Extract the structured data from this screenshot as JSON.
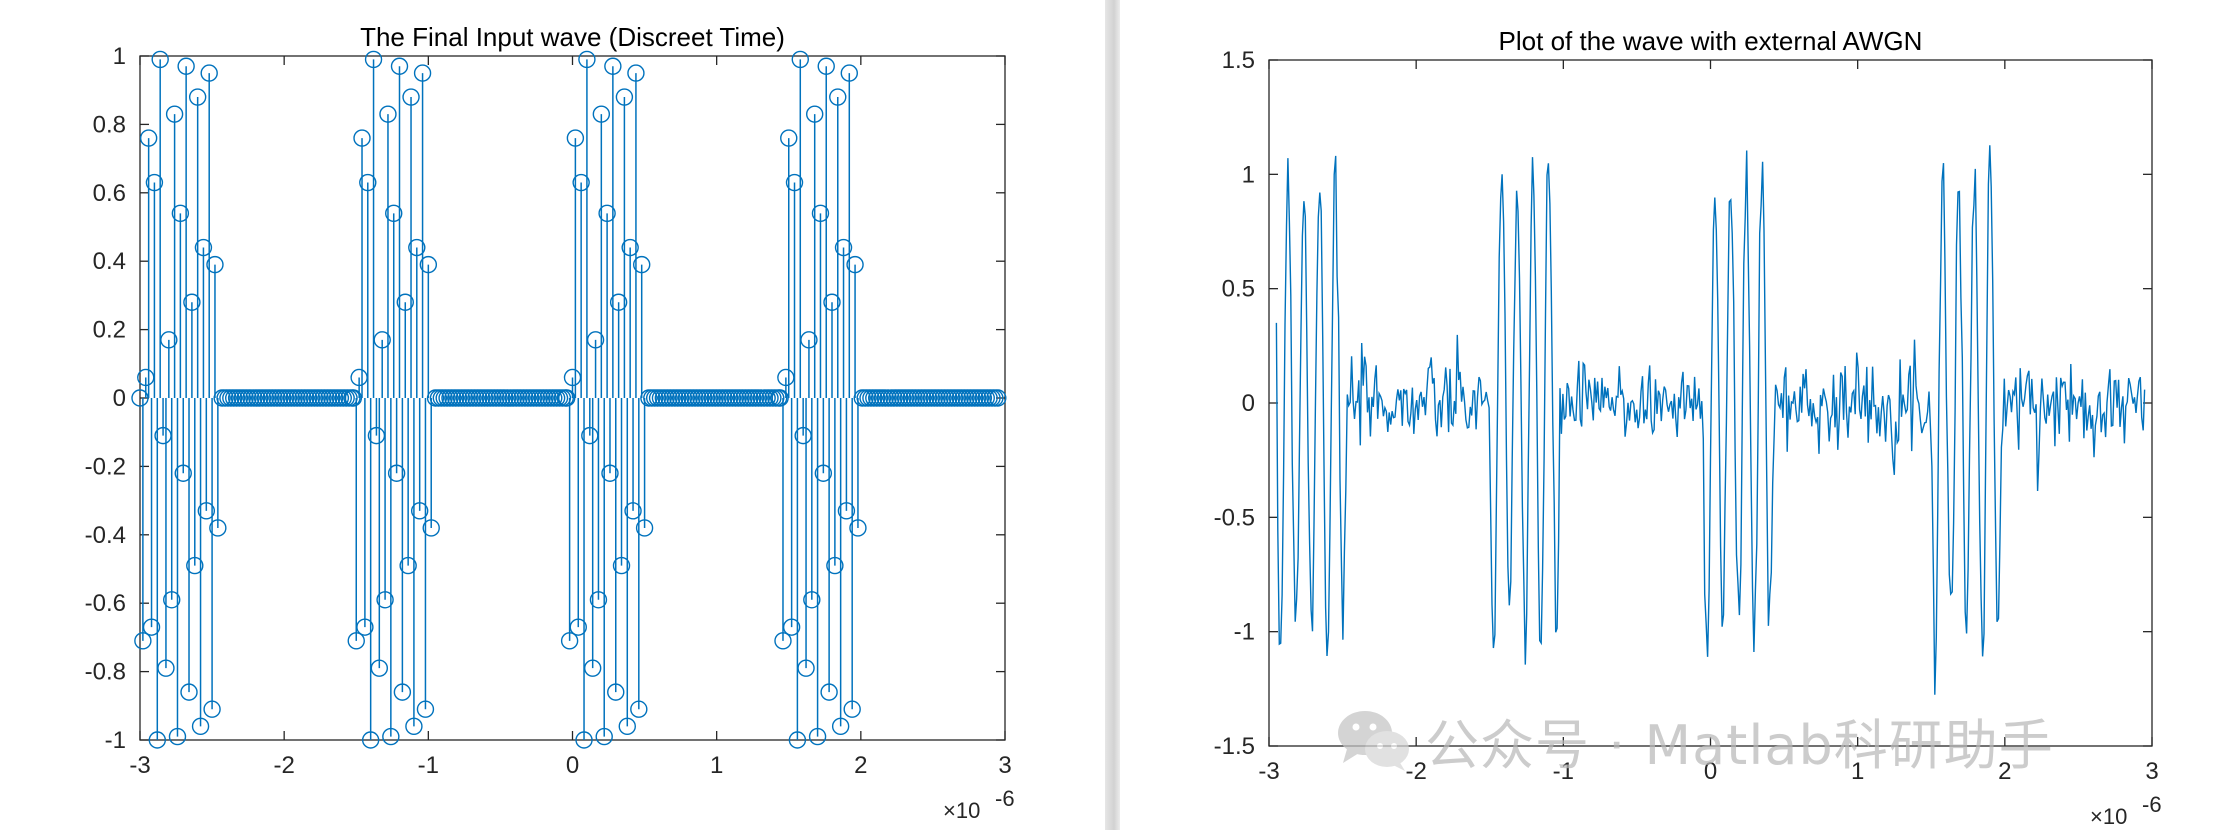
{
  "chart_data": [
    {
      "type": "stem",
      "title": "The Final Input wave (Discreet Time)",
      "xlabel": "",
      "ylabel": "",
      "xlim": [
        -3e-06,
        3e-06
      ],
      "ylim": [
        -1,
        1
      ],
      "xticks": [
        "-3",
        "-2",
        "-1",
        "0",
        "1",
        "2",
        "3"
      ],
      "yticks": [
        "1",
        "0.8",
        "0.6",
        "0.4",
        "0.2",
        "0",
        "-0.2",
        "-0.4",
        "-0.6",
        "-0.8",
        "-1"
      ],
      "x_exponent_label": "×10",
      "x_exponent_power": "-6",
      "grid": false,
      "color": "#0072BD",
      "marker": "circle",
      "sample_period": 2e-08,
      "burst_starts": [
        -3e-06,
        -1.52e-06,
        -4e-08,
        1.44e-06
      ],
      "burst_length_samples": 28,
      "values_per_burst": [
        0,
        -0.71,
        0.06,
        0.76,
        -0.67,
        0.63,
        -1.0,
        0.99,
        -0.11,
        -0.79,
        0.17,
        -0.59,
        0.83,
        -0.99,
        0.54,
        -0.22,
        0.97,
        -0.86,
        0.28,
        -0.49,
        0.88,
        -0.96,
        0.44,
        -0.33,
        0.95,
        -0.91,
        0.39,
        -0.38
      ],
      "zero_region": [
        -2.45e-06,
        2.95e-06
      ]
    },
    {
      "type": "line",
      "title": "Plot of the wave with external AWGN",
      "xlabel": "",
      "ylabel": "",
      "xlim": [
        -3e-06,
        3e-06
      ],
      "ylim": [
        -1.5,
        1.5
      ],
      "xticks": [
        "-3",
        "-2",
        "-1",
        "0",
        "1",
        "2",
        "3"
      ],
      "yticks": [
        "1.5",
        "1",
        "0.5",
        "0",
        "-0.5",
        "-1",
        "-1.5"
      ],
      "x_exponent_label": "×10",
      "x_exponent_power": "-6",
      "grid": false,
      "color": "#0072BD",
      "x_range": [
        -2.95e-06,
        2.95e-06
      ],
      "burst_x": [
        -2.95e-06,
        -1.5e-06,
        -5e-08,
        1.5e-06
      ],
      "burst_length": 4.8e-07,
      "burst_amplitude": 1.08,
      "noise_sigma": 0.09,
      "noise_seed": 7
    }
  ],
  "watermark": {
    "text": "公众号 · Matlab科研助手",
    "icon": "wechat-icon"
  }
}
